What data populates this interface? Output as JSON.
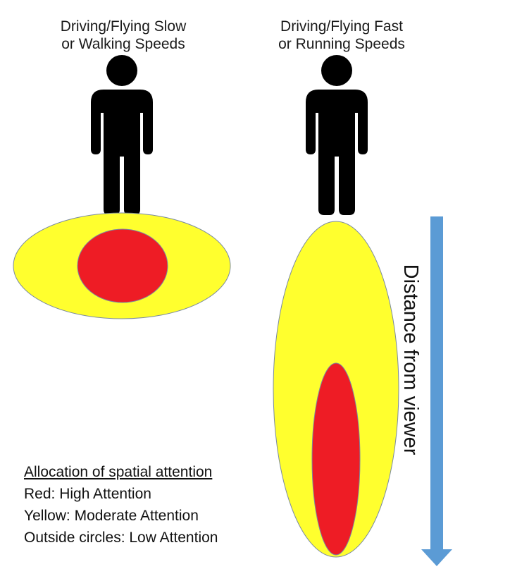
{
  "labels": {
    "slow": "Driving/Flying Slow\nor Walking Speeds",
    "fast": "Driving/Flying Fast\nor Running Speeds"
  },
  "arrow_label": "Distance from viewer",
  "legend": {
    "title": "Allocation of spatial attention",
    "items": [
      "Red: High Attention",
      "Yellow: Moderate Attention",
      "Outside circles: Low Attention"
    ]
  },
  "colors": {
    "high_attention": "#ee1c25",
    "moderate_attention": "#ffff2e",
    "arrow": "#5b9bd5",
    "person": "#000000"
  },
  "icons": [
    "person-icon",
    "person-icon",
    "down-arrow-icon"
  ]
}
